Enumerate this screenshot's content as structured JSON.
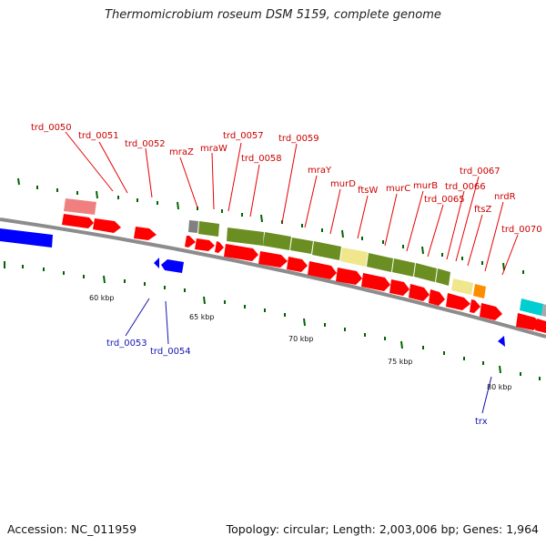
{
  "title": "Thermomicrobium roseum DSM 5159, complete genome",
  "footer": {
    "accession": "Accession: NC_011959",
    "stats": "Topology: circular; Length: 2,003,006 bp; Genes: 1,964"
  },
  "colors": {
    "backbone": "#8c8c8c",
    "cds": "#ff0000",
    "cog_green": "#6b8e23",
    "cog_pale": "#f0e68c",
    "cog_orange": "#ff8c00",
    "cog_cyan": "#00ced1",
    "cog_grey": "#808080",
    "cog_pink": "#f08080",
    "cds_other_strand": "#0000ff",
    "tick_green": "#006400",
    "label_red": "#cc0000",
    "label_blue": "#1414b4"
  },
  "tick_labels": [
    "60 kbp",
    "65 kbp",
    "70 kbp",
    "75 kbp",
    "80 kbp"
  ],
  "gene_labels": [
    "trd_0050",
    "trd_0051",
    "trd_0052",
    "mraZ",
    "mraW",
    "trd_0057",
    "trd_0058",
    "trd_0059",
    "mraY",
    "murD",
    "ftsW",
    "murC",
    "murB",
    "trd_0065",
    "trd_0066",
    "trd_0067",
    "ftsZ",
    "nrdR",
    "trd_0070",
    "trd_0053",
    "trd_0054",
    "trx"
  ]
}
